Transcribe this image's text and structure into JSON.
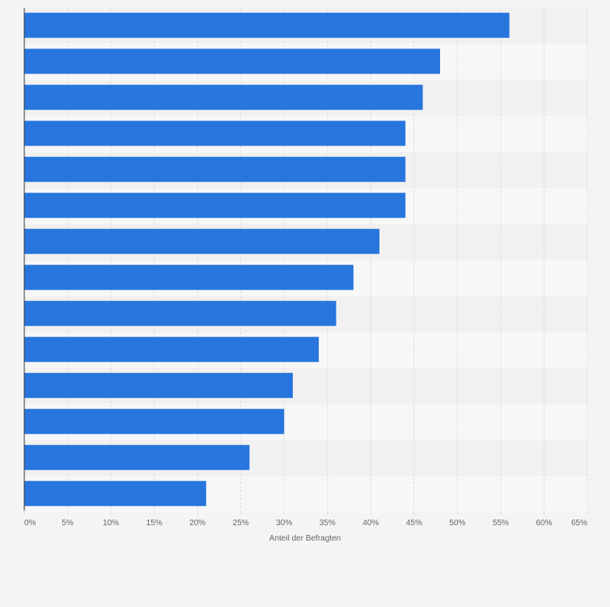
{
  "chart_data": {
    "type": "bar",
    "orientation": "horizontal",
    "categories": [
      "",
      "",
      "",
      "",
      "",
      "",
      "",
      "",
      "",
      "",
      "",
      "",
      "",
      ""
    ],
    "values": [
      56,
      48,
      46,
      44,
      44,
      44,
      41,
      38,
      36,
      34,
      31,
      30,
      26,
      21
    ],
    "xlabel": "Anteil der Befragten",
    "ylabel": "",
    "xlim": [
      0,
      65
    ],
    "x_ticks": [
      0,
      5,
      10,
      15,
      20,
      25,
      30,
      35,
      40,
      45,
      50,
      55,
      60,
      65
    ],
    "x_tick_labels": [
      "0%",
      "5%",
      "10%",
      "15%",
      "20%",
      "25%",
      "30%",
      "35%",
      "40%",
      "45%",
      "50%",
      "55%",
      "60%",
      "65%"
    ],
    "grid": true,
    "legend": "none",
    "colors": {
      "bar": "#2876dd",
      "background": "#f4f4f4",
      "band_light": "#f7f7f7",
      "band_dark": "#f1f1f1",
      "grid": "#dcdcdc",
      "axis": "#333333",
      "text": "#666666"
    }
  }
}
